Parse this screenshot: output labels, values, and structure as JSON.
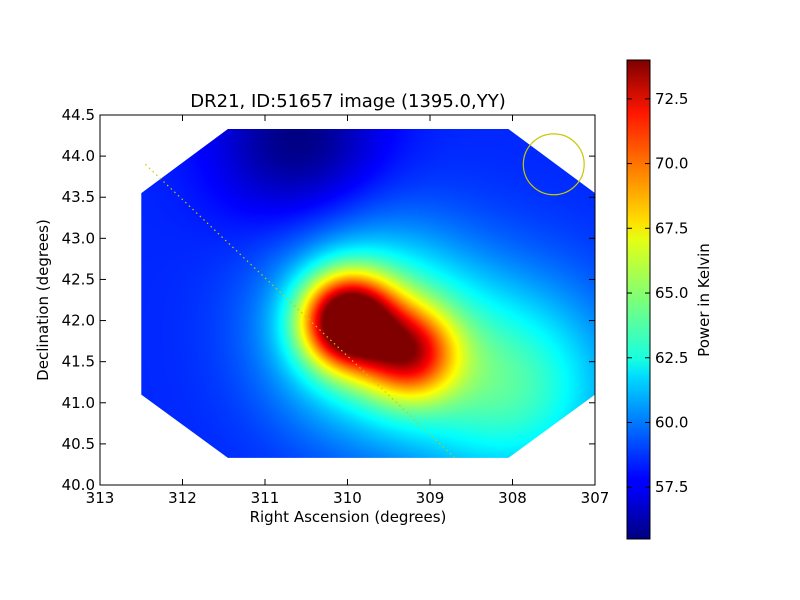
{
  "chart_data": {
    "type": "heatmap",
    "title": "DR21, ID:51657 image (1395.0,YY)",
    "xlabel": "Right Ascension (degrees)",
    "ylabel": "Declination (degrees)",
    "xlim": [
      313,
      307
    ],
    "ylim": [
      40.0,
      44.5
    ],
    "x_ticks": [
      "313",
      "312",
      "311",
      "310",
      "309",
      "308",
      "307"
    ],
    "y_ticks": [
      "40.0",
      "40.5",
      "41.0",
      "41.5",
      "42.0",
      "42.5",
      "43.0",
      "43.5",
      "44.0",
      "44.5"
    ],
    "colorbar": {
      "label": "Power in Kelvin",
      "range": [
        55.5,
        74.0
      ],
      "ticks": [
        "57.5",
        "60.0",
        "62.5",
        "65.0",
        "67.5",
        "70.0",
        "72.5"
      ],
      "colormap": "jet"
    },
    "map_footprint": [
      [
        311.45,
        44.33
      ],
      [
        308.05,
        44.33
      ],
      [
        307.0,
        43.55
      ],
      [
        307.0,
        41.1
      ],
      [
        308.05,
        40.33
      ],
      [
        311.45,
        40.33
      ],
      [
        312.5,
        41.1
      ],
      [
        312.5,
        43.55
      ]
    ],
    "background_level": 58.5,
    "emission_components": [
      {
        "ra": 310.0,
        "dec": 42.0,
        "peak": 14.5,
        "sigma": 0.38
      },
      {
        "ra": 309.25,
        "dec": 41.6,
        "peak": 8.0,
        "sigma": 0.38
      },
      {
        "ra": 309.7,
        "dec": 41.9,
        "peak": 6.0,
        "sigma": 0.85
      },
      {
        "ra": 308.0,
        "dec": 41.2,
        "peak": 5.0,
        "sigma": 0.9
      },
      {
        "ra": 310.6,
        "dec": 44.2,
        "peak": -3.0,
        "sigma": 0.7
      }
    ],
    "scan_track": {
      "start": [
        312.45,
        43.9
      ],
      "end": [
        308.7,
        40.33
      ],
      "color": "#c8c800"
    },
    "beam_circle": {
      "ra": 307.5,
      "dec": 43.9,
      "radius_deg": 0.37,
      "color": "#c8c800"
    }
  }
}
